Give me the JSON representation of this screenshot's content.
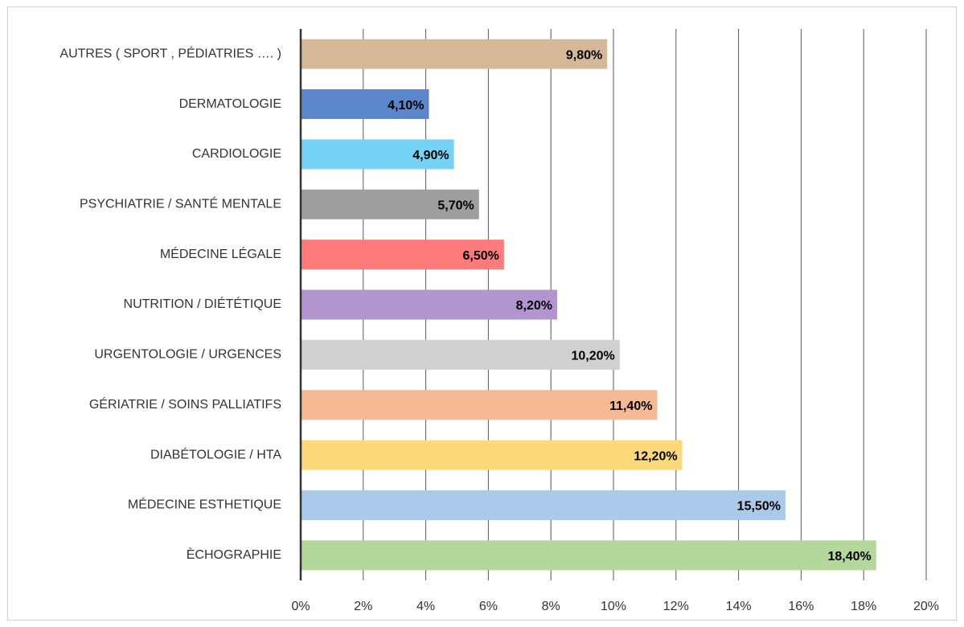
{
  "chart_data": {
    "type": "hbar",
    "categories": [
      "AUTRES ( SPORT , PÉDIATRIES …. )",
      "DERMATOLOGIE",
      "CARDIOLOGIE",
      "PSYCHIATRIE / SANTÉ MENTALE",
      "MÉDECINE LÉGALE",
      "NUTRITION / DIÉTÉTIQUE",
      "URGENTOLOGIE / URGENCES",
      "GÉRIATRIE / SOINS PALLIATIFS",
      "DIABÉTOLOGIE / HTA",
      "MÉDECINE ESTHETIQUE",
      "ÈCHOGRAPHIE"
    ],
    "values": [
      9.8,
      4.1,
      4.9,
      5.7,
      6.5,
      8.2,
      10.2,
      11.4,
      12.2,
      15.5,
      18.4
    ],
    "value_labels": [
      "9,80%",
      "4,10%",
      "4,90%",
      "5,70%",
      "6,50%",
      "8,20%",
      "10,20%",
      "11,40%",
      "12,20%",
      "15,50%",
      "18,40%"
    ],
    "colors": [
      "#d5b898",
      "#5b86cb",
      "#76d3f6",
      "#9e9e9e",
      "#ff7b7b",
      "#b294cf",
      "#d0d0d0",
      "#f5b994",
      "#fdd97c",
      "#abc9e9",
      "#b4d79c"
    ],
    "xlim": [
      0,
      20
    ],
    "xticks": [
      {
        "value": 0,
        "label": "0%"
      },
      {
        "value": 2,
        "label": "2%"
      },
      {
        "value": 4,
        "label": "4%"
      },
      {
        "value": 6,
        "label": "6%"
      },
      {
        "value": 8,
        "label": "8%"
      },
      {
        "value": 10,
        "label": "10%"
      },
      {
        "value": 12,
        "label": "12%"
      },
      {
        "value": 14,
        "label": "14%"
      },
      {
        "value": 16,
        "label": "16%"
      },
      {
        "value": 18,
        "label": "18%"
      },
      {
        "value": 20,
        "label": "20%"
      }
    ],
    "grid": true
  }
}
